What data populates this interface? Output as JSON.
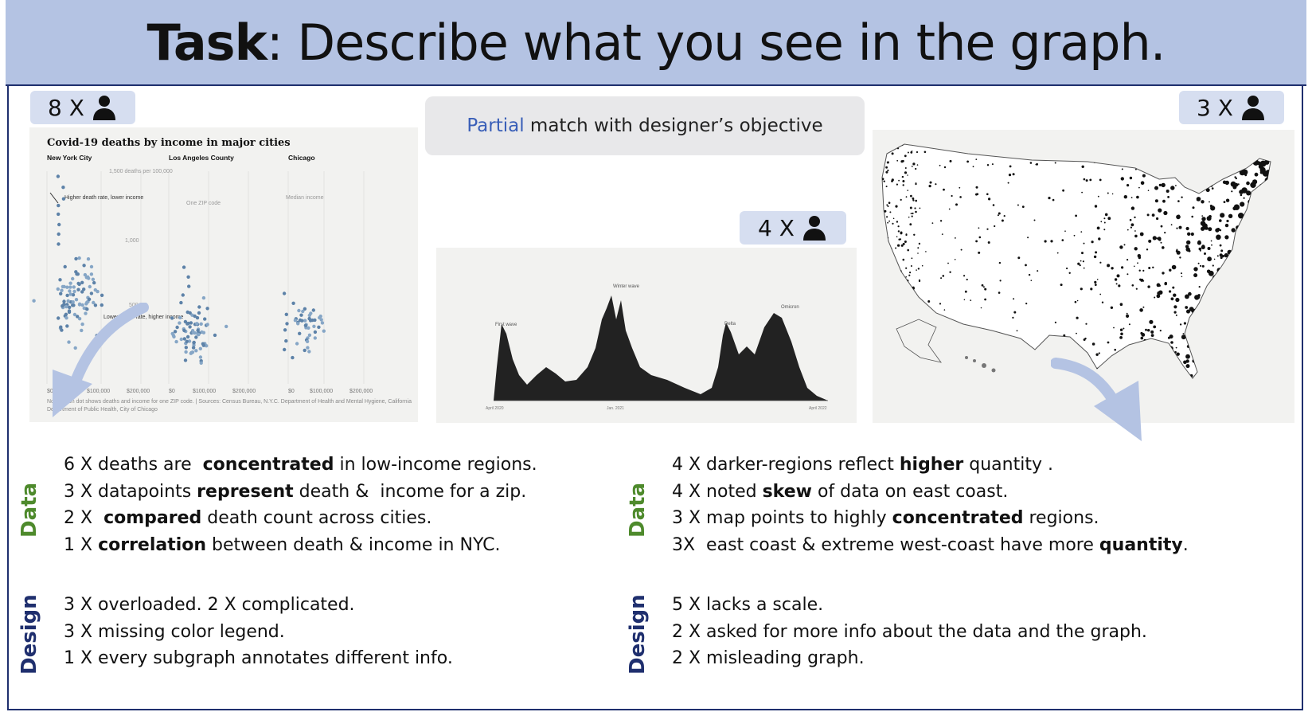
{
  "title": {
    "bold": "Task",
    "rest": ": Describe what you see in the graph."
  },
  "badges": {
    "scatter": "8 X",
    "area": "4 X",
    "map": "3 X"
  },
  "match_note": {
    "highlight": "Partial",
    "rest": " match with designer’s objective"
  },
  "scatter_thumb": {
    "title": "Covid-19 deaths by income in major cities",
    "panels": [
      "New York City",
      "Los Angeles County",
      "Chicago"
    ],
    "ny_axis_head": "1,500 deaths per 100,000",
    "ny_tick_1000": "1,000",
    "ny_tick_500": "500",
    "note_high": "Higher death rate, lower income",
    "note_low": "Lower death rate, higher income",
    "la_note": "One ZIP code",
    "chi_note": "Median income",
    "x_ticks": [
      "$0",
      "$100,000",
      "$200,000"
    ],
    "source": "Note: Each dot shows deaths and income for one ZIP code. | Sources: Census Bureau, N.Y.C. Department of Health and Mental Hygiene, California Department of Public Health, City of Chicago"
  },
  "area_thumb": {
    "peaks": [
      "First wave",
      "Winter wave",
      "Delta",
      "Omicron"
    ],
    "x_ticks": [
      "April 2020",
      "Jan. 2021",
      "April 2022"
    ]
  },
  "left_data": {
    "label": "Data",
    "lines": [
      [
        {
          "t": "6 X deaths are  "
        },
        {
          "t": "concentrated",
          "b": true
        },
        {
          "t": " in low-income regions."
        }
      ],
      [
        {
          "t": "3 X datapoints "
        },
        {
          "t": "represent",
          "b": true
        },
        {
          "t": " death &  income for a zip."
        }
      ],
      [
        {
          "t": "2 X  "
        },
        {
          "t": "compared",
          "b": true
        },
        {
          "t": " death count across cities."
        }
      ],
      [
        {
          "t": "1 X "
        },
        {
          "t": "correlation",
          "b": true
        },
        {
          "t": " between death & income in NYC."
        }
      ]
    ]
  },
  "left_design": {
    "label": "Design",
    "lines": [
      [
        {
          "t": "3 X overloaded. 2 X complicated."
        }
      ],
      [
        {
          "t": "3 X missing color legend."
        }
      ],
      [
        {
          "t": "1 X every subgraph annotates different info."
        }
      ]
    ]
  },
  "right_data": {
    "label": "Data",
    "lines": [
      [
        {
          "t": "4 X darker-regions reflect "
        },
        {
          "t": "higher",
          "b": true
        },
        {
          "t": " quantity ."
        }
      ],
      [
        {
          "t": "4 X noted "
        },
        {
          "t": "skew",
          "b": true
        },
        {
          "t": " of data on east coast."
        }
      ],
      [
        {
          "t": "3 X map points to highly "
        },
        {
          "t": "concentrated",
          "b": true
        },
        {
          "t": " regions."
        }
      ],
      [
        {
          "t": "3X  east coast & extreme west-coast have more "
        },
        {
          "t": "quantity",
          "b": true
        },
        {
          "t": "."
        }
      ]
    ]
  },
  "right_design": {
    "label": "Design",
    "lines": [
      [
        {
          "t": "5 X lacks a scale."
        }
      ],
      [
        {
          "t": "2 X asked for more info about the data and the graph."
        }
      ],
      [
        {
          "t": "2 X misleading graph."
        }
      ]
    ]
  },
  "colors": {
    "title_bg": "#b4c3e3",
    "frame": "#1f2f6e",
    "badge_bg": "#d6def0",
    "data_label": "#4e8a2c",
    "design_label": "#1f2f6e",
    "partial": "#3a5fb8",
    "arrow": "#b4c3e3"
  },
  "icons": {
    "person": "person-icon",
    "arrow": "curved-arrow-icon"
  }
}
